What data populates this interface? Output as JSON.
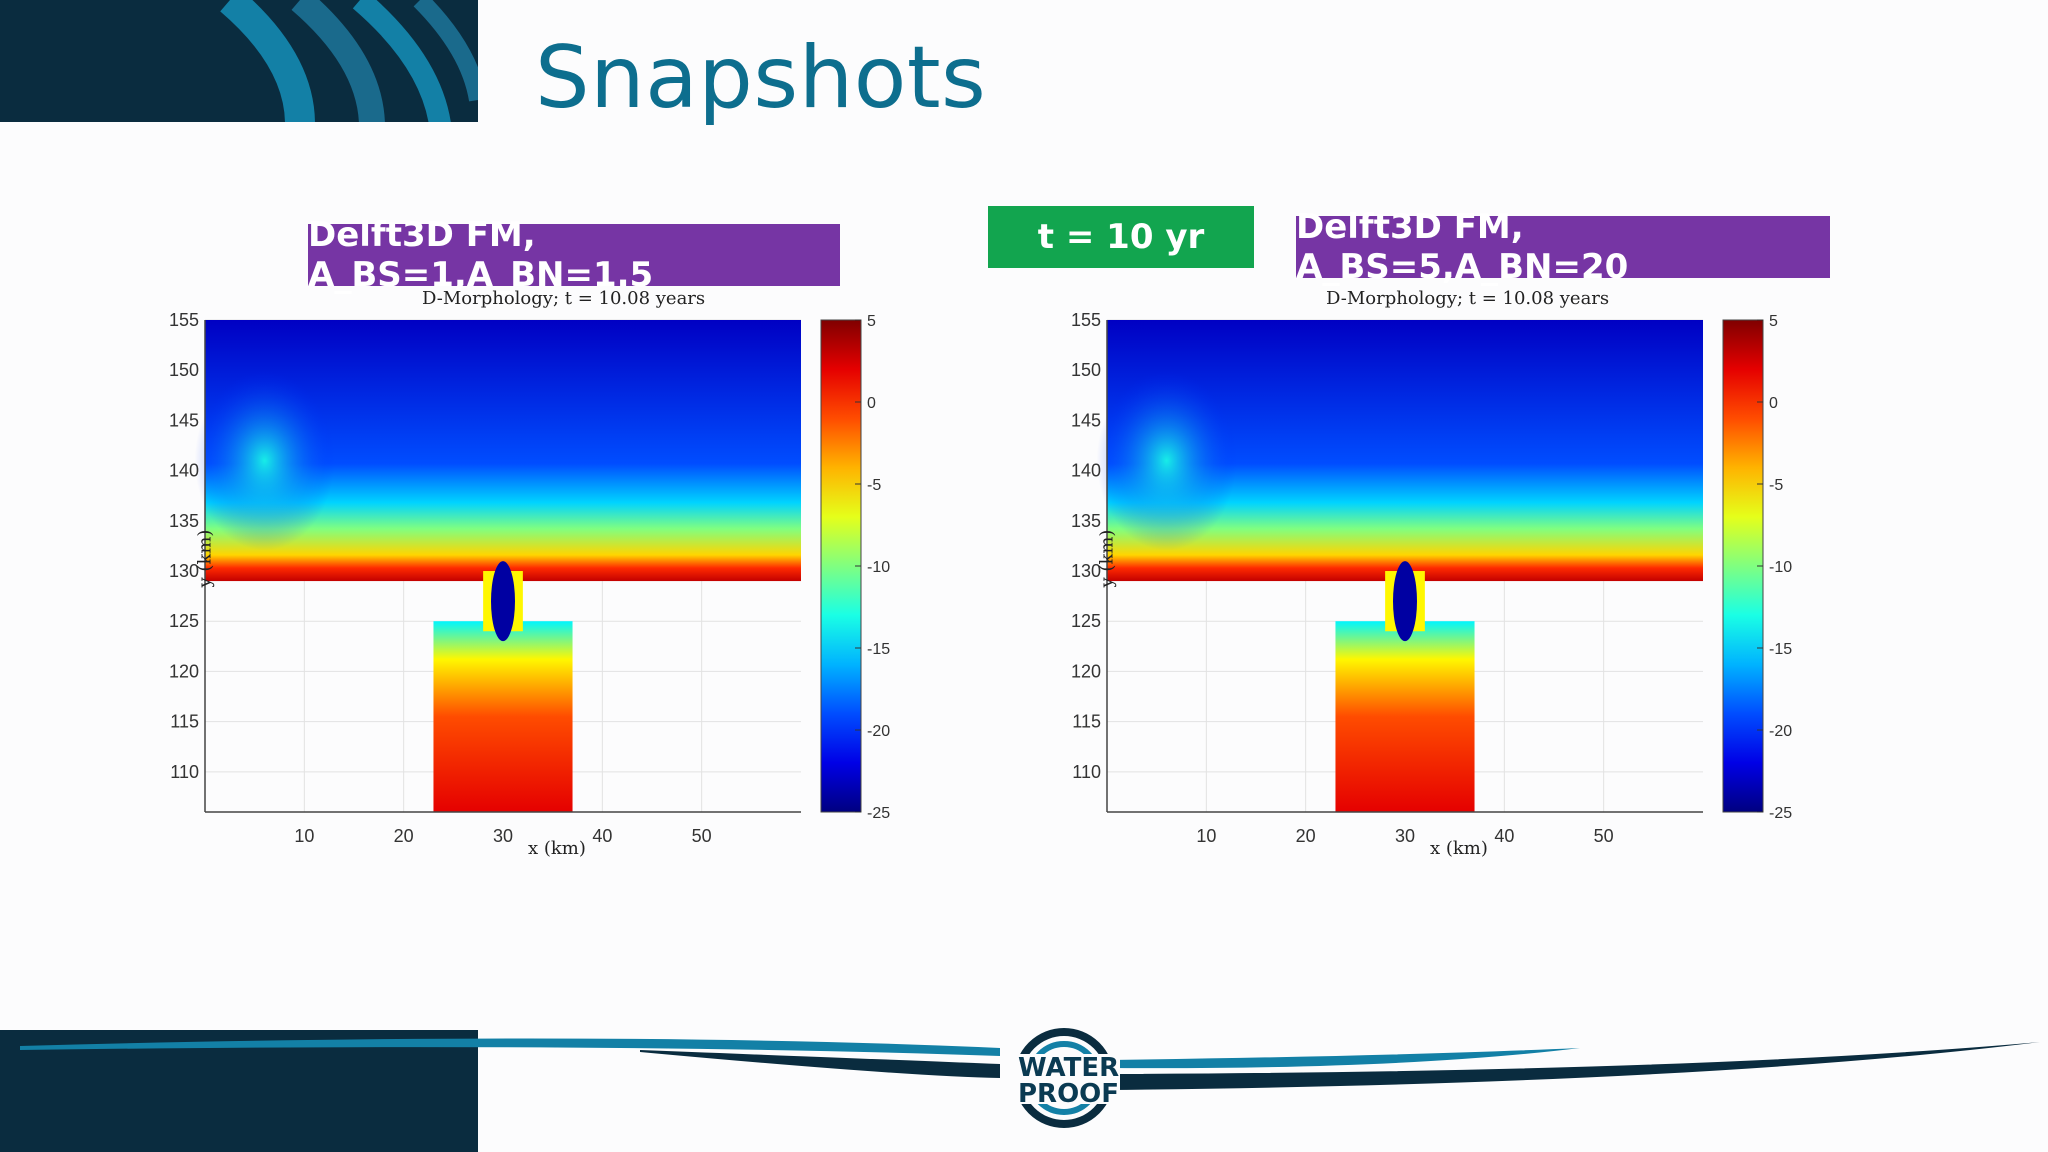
{
  "slide": {
    "title": "Snapshots",
    "time_label": "t = 10 yr",
    "logo": {
      "line1": "WATER",
      "line2": "PROOF"
    },
    "colors": {
      "dark_navy": "#0a2c3f",
      "teal": "#0d6e8e",
      "purple": "#7635a4",
      "green": "#12a54f"
    }
  },
  "panels": [
    {
      "label": "Delft3D FM, A_BS=1,A_BN=1.5"
    },
    {
      "label": "Delft3D FM, A_BS=5,A_BN=20"
    }
  ],
  "chart_data": [
    {
      "type": "heatmap",
      "title": "D-Morphology; t = 10.08 years",
      "xlabel": "x (km)",
      "ylabel": "y (km)",
      "xticks": [
        10,
        20,
        30,
        40,
        50
      ],
      "yticks": [
        110,
        115,
        120,
        125,
        130,
        135,
        140,
        145,
        150,
        155
      ],
      "xlim": [
        0,
        60
      ],
      "ylim": [
        106,
        155
      ],
      "grid": true,
      "colormap": "jet",
      "clim": [
        -25,
        5
      ],
      "colorbar_ticks": [
        5,
        0,
        -5,
        -10,
        -15,
        -20,
        -25
      ],
      "regions": {
        "sea": {
          "x": [
            0,
            60
          ],
          "y": [
            129,
            155
          ],
          "bed_level_range": [
            -25,
            3
          ]
        },
        "inlet": {
          "x": [
            28,
            32
          ],
          "y": [
            125,
            129
          ],
          "bed_level_min": -25
        },
        "basin": {
          "x": [
            23,
            37
          ],
          "y": [
            106,
            125
          ],
          "bed_level_range": [
            -18,
            3
          ]
        }
      }
    },
    {
      "type": "heatmap",
      "title": "D-Morphology; t = 10.08 years",
      "xlabel": "x (km)",
      "ylabel": "y (km)",
      "xticks": [
        10,
        20,
        30,
        40,
        50
      ],
      "yticks": [
        110,
        115,
        120,
        125,
        130,
        135,
        140,
        145,
        150,
        155
      ],
      "xlim": [
        0,
        60
      ],
      "ylim": [
        106,
        155
      ],
      "grid": true,
      "colormap": "jet",
      "clim": [
        -25,
        5
      ],
      "colorbar_ticks": [
        5,
        0,
        -5,
        -10,
        -15,
        -20,
        -25
      ],
      "regions": {
        "sea": {
          "x": [
            0,
            60
          ],
          "y": [
            129,
            155
          ],
          "bed_level_range": [
            -25,
            3
          ]
        },
        "inlet": {
          "x": [
            28,
            32
          ],
          "y": [
            125,
            129
          ],
          "bed_level_min": -25
        },
        "basin": {
          "x": [
            23,
            37
          ],
          "y": [
            106,
            125
          ],
          "bed_level_range": [
            -18,
            3
          ]
        }
      }
    }
  ]
}
